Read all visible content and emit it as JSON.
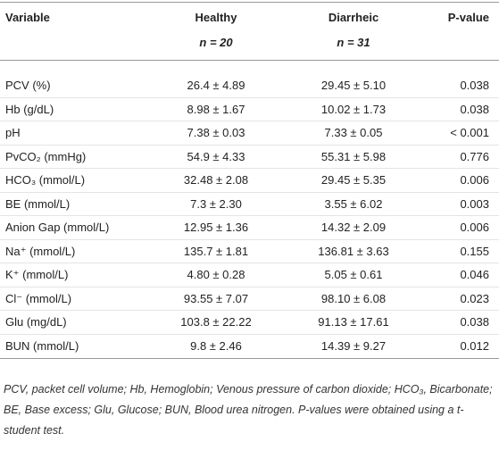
{
  "table": {
    "header": [
      [
        "Variable",
        "Healthy",
        "Diarrheic",
        "P-value"
      ],
      [
        "n = 20",
        "n = 31"
      ]
    ],
    "rows": [
      [
        "PCV (%)",
        "26.4 ± 4.89",
        "29.45 ± 5.10",
        "0.038"
      ],
      [
        "Hb (g/dL)",
        "8.98 ± 1.67",
        "10.02 ± 1.73",
        "0.038"
      ],
      [
        "pH",
        "7.38 ± 0.03",
        "7.33 ± 0.05",
        "< 0.001"
      ],
      [
        "PvCO₂ (mmHg)",
        "54.9 ± 4.33",
        "55.31 ± 5.98",
        "0.776"
      ],
      [
        "HCO₃ (mmol/L)",
        "32.48 ± 2.08",
        "29.45 ± 5.35",
        "0.006"
      ],
      [
        "BE (mmol/L)",
        "7.3 ± 2.30",
        "3.55 ± 6.02",
        "0.003"
      ],
      [
        "Anion Gap (mmol/L)",
        "12.95 ± 1.36",
        "14.32 ± 2.09",
        "0.006"
      ],
      [
        "Na⁺ (mmol/L)",
        "135.7 ± 1.81",
        "136.81 ± 3.63",
        "0.155"
      ],
      [
        "K⁺ (mmol/L)",
        "4.80 ± 0.28",
        "5.05 ± 0.61",
        "0.046"
      ],
      [
        "Cl⁻ (mmol/L)",
        "93.55 ± 7.07",
        "98.10 ± 6.08",
        "0.023"
      ],
      [
        "Glu (mg/dL)",
        "103.8 ± 22.22",
        "91.13 ± 17.61",
        "0.038"
      ],
      [
        "BUN (mmol/L)",
        "9.8 ± 2.46",
        "14.39 ± 9.27",
        "0.012"
      ]
    ],
    "footnote": "PCV, packet cell volume; Hb, Hemoglobin; Venous pressure of carbon dioxide; HCO₃, Bicarbonate; BE, Base excess; Glu, Glucose; BUN, Blood urea nitrogen. P-values were obtained using a t-student test."
  }
}
